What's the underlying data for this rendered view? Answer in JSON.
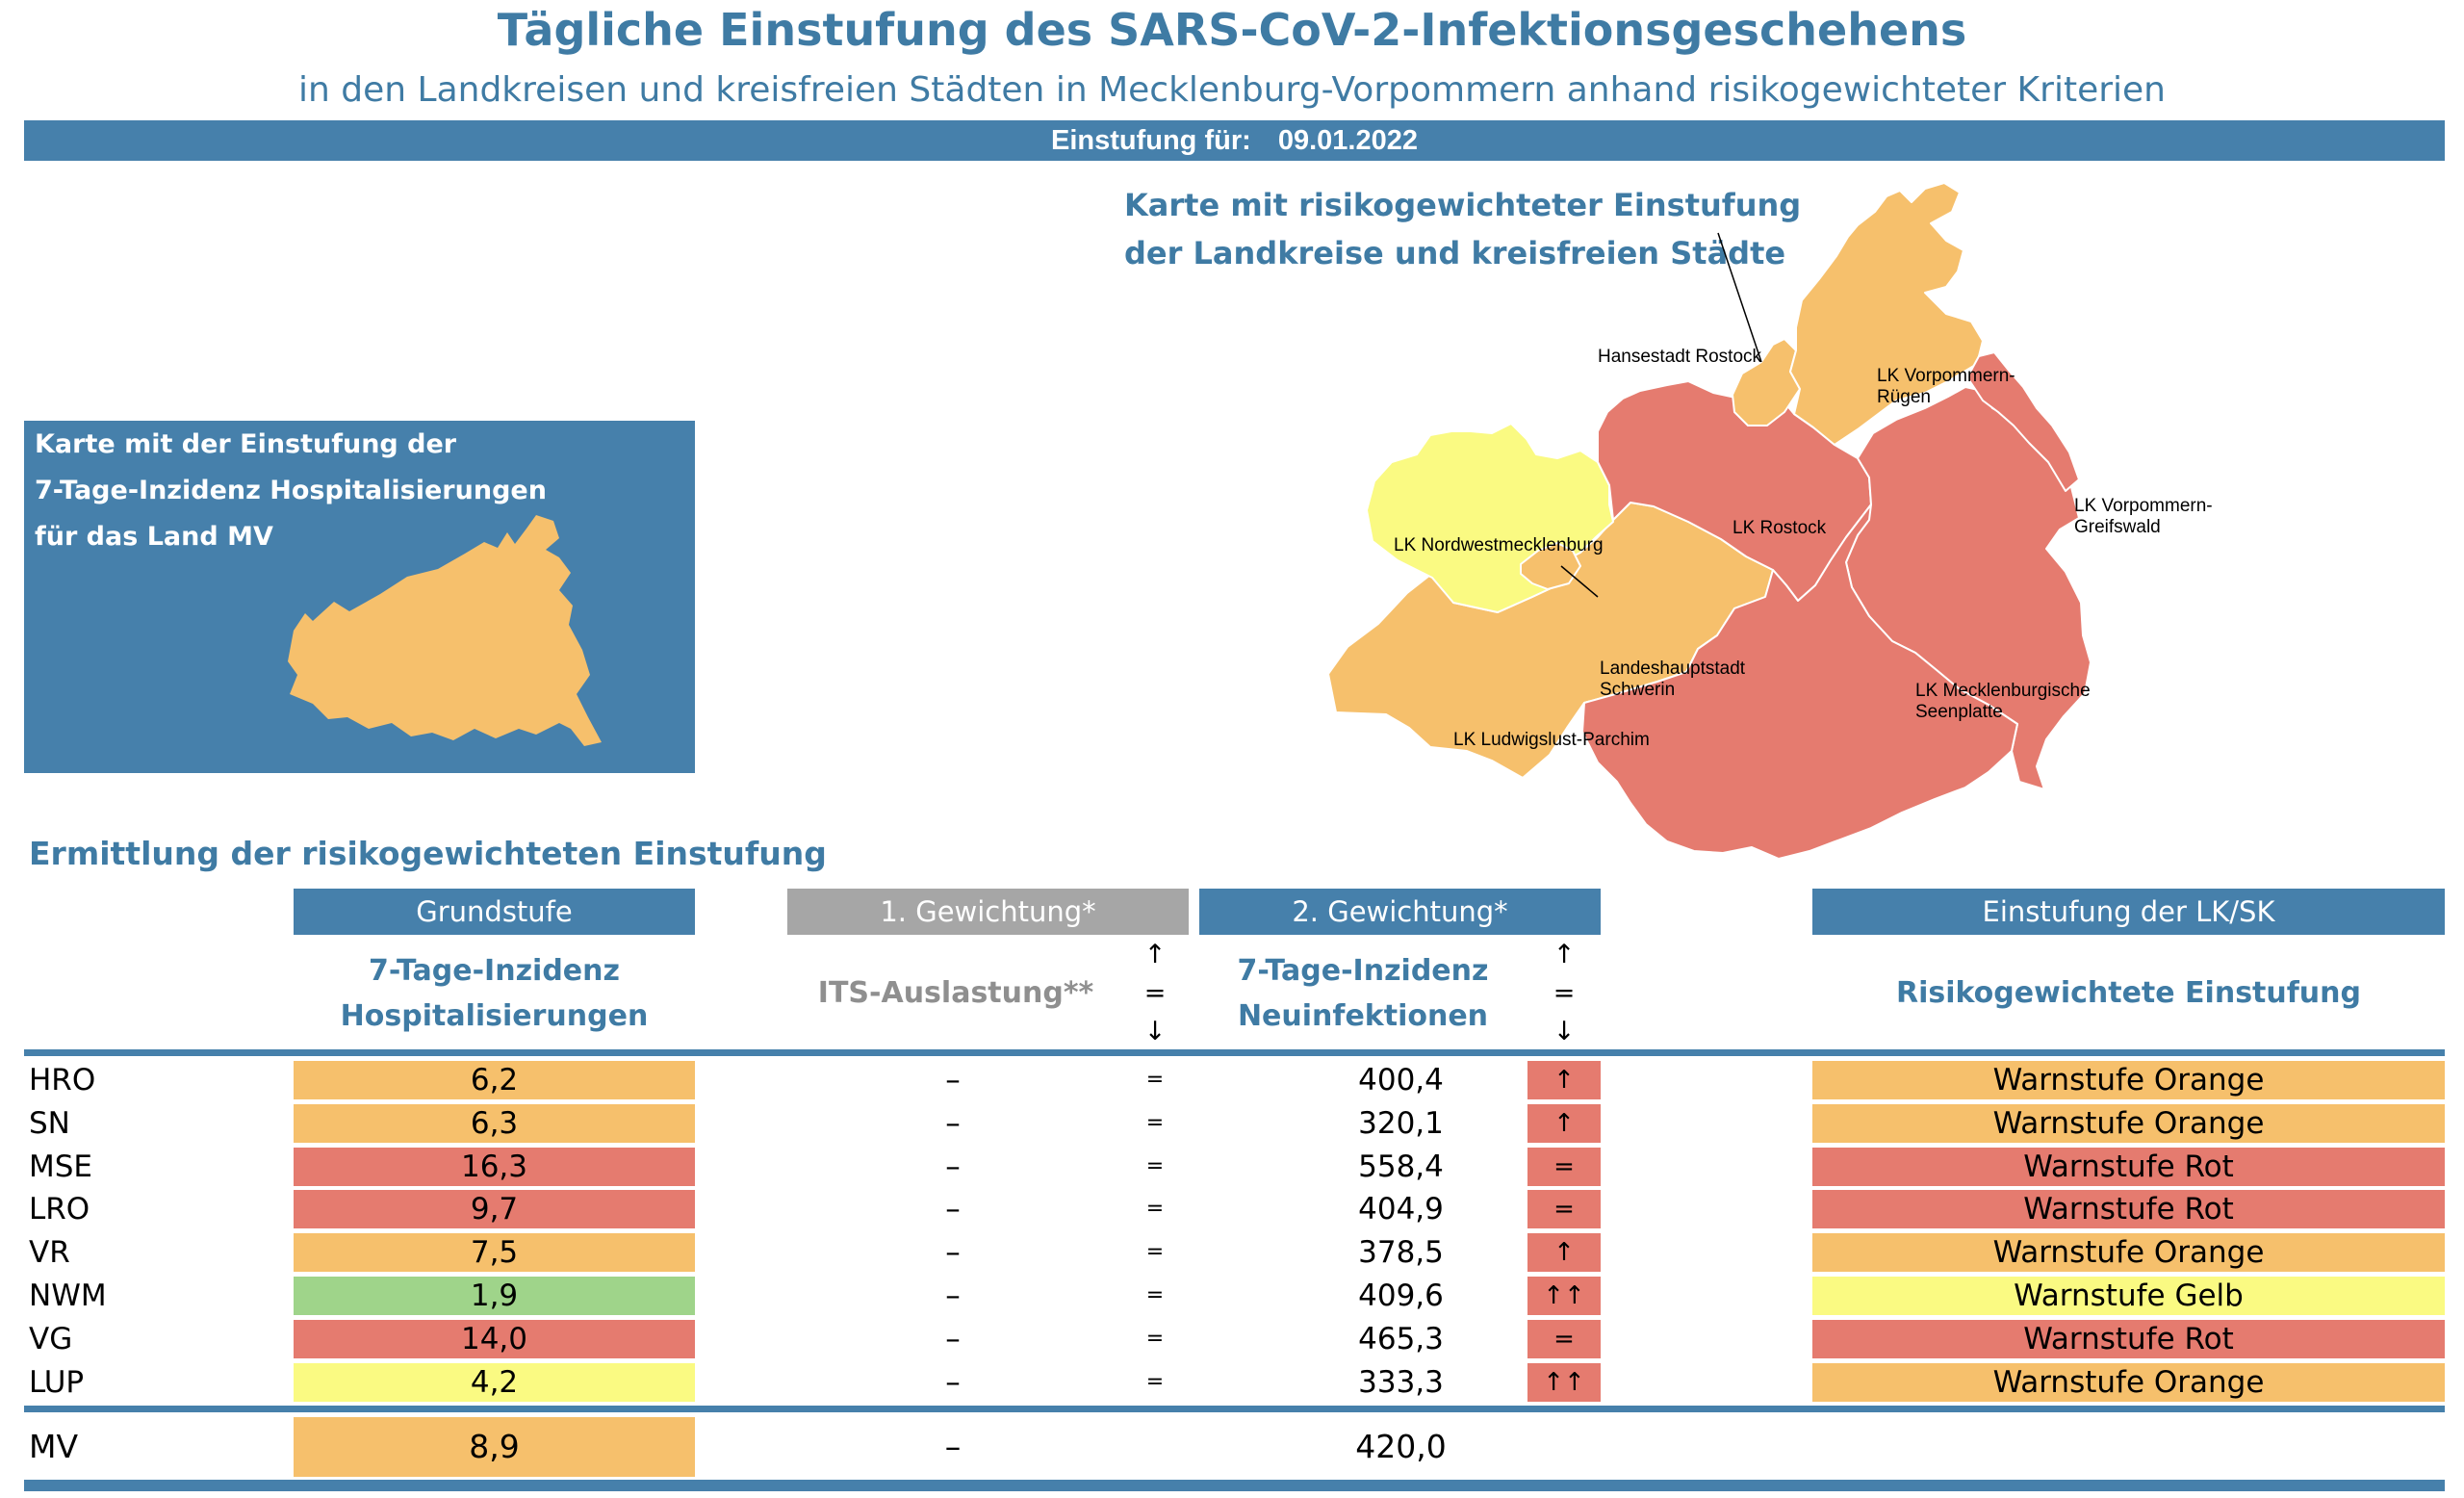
{
  "header": {
    "title": "Tägliche Einstufung des SARS-CoV-2-Infektionsgeschehens",
    "subtitle": "in den Landkreisen und kreisfreien Städten in Mecklenburg-Vorpommern anhand risikogewichteter Kriterien",
    "date_label": "Einstufung für:",
    "date_value": "09.01.2022"
  },
  "map": {
    "title_line1": "Karte mit risikogewichteter Einstufung",
    "title_line2": "der Landkreise und kreisfreien Städte",
    "labels": {
      "hro": "Hansestadt Rostock",
      "vr_1": "LK Vorpommern-",
      "vr_2": "Rügen",
      "nwm": "LK Nordwestmecklenburg",
      "lro": "LK Rostock",
      "vg_1": "LK Vorpommern-",
      "vg_2": "Greifswald",
      "sn_1": "Landeshauptstadt",
      "sn_2": "Schwerin",
      "mse_1": "LK Mecklenburgische",
      "mse_2": "Seenplatte",
      "lup": "LK Ludwigslust-Parchim"
    }
  },
  "mini_map": {
    "line1": "Karte mit der Einstufung der",
    "line2": "7-Tage-Inzidenz Hospitalisierungen",
    "line3": "für das Land MV"
  },
  "section_title": "Ermittlung der risikogewichteten Einstufung",
  "table": {
    "headers": {
      "grundstufe": "Grundstufe",
      "gewichtung1": "1. Gewichtung*",
      "gewichtung2": "2. Gewichtung*",
      "einstufung": "Einstufung der LK/SK"
    },
    "subheaders": {
      "hosp_1": "7-Tage-Inzidenz",
      "hosp_2": "Hospitalisierungen",
      "its": "ITS-Auslastung**",
      "inc_1": "7-Tage-Inzidenz",
      "inc_2": "Neuinfektionen",
      "risk": "Risikogewichtete Einstufung"
    },
    "arrows": {
      "up": "↑",
      "eq": "=",
      "down": "↓"
    },
    "rows": [
      {
        "code": "HRO",
        "hosp": "6,2",
        "its": "–",
        "eq": "=",
        "inc": "400,4",
        "trend": "↑",
        "stufe": "Warnstufe Orange"
      },
      {
        "code": "SN",
        "hosp": "6,3",
        "its": "–",
        "eq": "=",
        "inc": "320,1",
        "trend": "↑",
        "stufe": "Warnstufe Orange"
      },
      {
        "code": "MSE",
        "hosp": "16,3",
        "its": "–",
        "eq": "=",
        "inc": "558,4",
        "trend": "=",
        "stufe": "Warnstufe Rot"
      },
      {
        "code": "LRO",
        "hosp": "9,7",
        "its": "–",
        "eq": "=",
        "inc": "404,9",
        "trend": "=",
        "stufe": "Warnstufe Rot"
      },
      {
        "code": "VR",
        "hosp": "7,5",
        "its": "–",
        "eq": "=",
        "inc": "378,5",
        "trend": "↑",
        "stufe": "Warnstufe Orange"
      },
      {
        "code": "NWM",
        "hosp": "1,9",
        "its": "–",
        "eq": "=",
        "inc": "409,6",
        "trend": "↑↑",
        "stufe": "Warnstufe Gelb"
      },
      {
        "code": "VG",
        "hosp": "14,0",
        "its": "–",
        "eq": "=",
        "inc": "465,3",
        "trend": "=",
        "stufe": "Warnstufe Rot"
      },
      {
        "code": "LUP",
        "hosp": "4,2",
        "its": "–",
        "eq": "=",
        "inc": "333,3",
        "trend": "↑↑",
        "stufe": "Warnstufe Orange"
      }
    ],
    "total": {
      "code": "MV",
      "hosp": "8,9",
      "its": "–",
      "inc": "420,0"
    }
  },
  "colors": {
    "brand_blue": "#4680ab",
    "title_blue": "#3f7ba4",
    "orange": "#f6c06c",
    "red": "#e57b6f",
    "yellow": "#fafa82",
    "green": "#9fd48a",
    "grey": "#a6a6a6"
  }
}
